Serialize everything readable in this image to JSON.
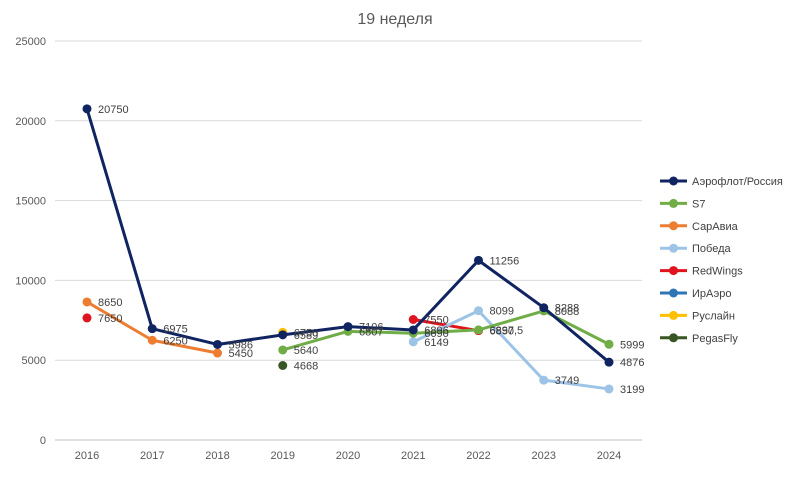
{
  "chart_data": {
    "type": "line",
    "title": "19 неделя",
    "xlabel": "",
    "ylabel": "",
    "x": [
      "2016",
      "2017",
      "2018",
      "2019",
      "2020",
      "2021",
      "2022",
      "2023",
      "2024"
    ],
    "ylim": [
      0,
      25000
    ],
    "yticks": [
      "0",
      "5000",
      "10000",
      "15000",
      "20000",
      "25000"
    ],
    "grid": true,
    "legend_position": "right",
    "series": [
      {
        "name": "Аэрофлот/Россия",
        "color": "#0f2461",
        "values": [
          20750,
          6975,
          5986,
          6589,
          7106,
          6896,
          11256,
          8288,
          4876
        ],
        "labels": [
          "20750",
          "6975",
          "5986",
          "6589",
          "7106",
          "6896",
          "11256",
          "8288",
          "4876"
        ]
      },
      {
        "name": "S7",
        "color": "#70ad47",
        "values": [
          null,
          null,
          null,
          5640,
          6807,
          6690,
          6897.5,
          8088,
          5999
        ],
        "labels": [
          "",
          "",
          "",
          "5640",
          "6807",
          "6690",
          "6897,5",
          "8088",
          "5999"
        ]
      },
      {
        "name": "СарАвиа",
        "color": "#ed7d31",
        "values": [
          8650,
          6250,
          5450,
          null,
          null,
          null,
          null,
          null,
          null
        ],
        "labels": [
          "8650",
          "6250",
          "5450",
          "",
          "",
          "",
          "",
          "",
          ""
        ]
      },
      {
        "name": "Победа",
        "color": "#9dc3e6",
        "values": [
          null,
          null,
          null,
          null,
          null,
          6149,
          8099,
          3749,
          3199
        ],
        "labels": [
          "",
          "",
          "",
          "",
          "",
          "6149",
          "8099",
          "3749",
          "3199"
        ]
      },
      {
        "name": "RedWings",
        "color": "#e0141e",
        "values": [
          7650,
          null,
          null,
          null,
          null,
          7550,
          6850,
          null,
          null
        ],
        "labels": [
          "7650",
          "",
          "",
          "",
          "",
          "7550",
          "6850",
          "",
          ""
        ]
      },
      {
        "name": "ИрАэро",
        "color": "#2e75b6",
        "values": [
          null,
          null,
          null,
          null,
          null,
          null,
          null,
          null,
          null
        ],
        "labels": [
          "",
          "",
          "",
          "",
          "",
          "",
          "",
          "",
          ""
        ]
      },
      {
        "name": "Руслайн",
        "color": "#ffc000",
        "values": [
          null,
          null,
          null,
          6750,
          null,
          null,
          null,
          null,
          null
        ],
        "labels": [
          "",
          "",
          "",
          "6750",
          "",
          "",
          "",
          "",
          ""
        ]
      },
      {
        "name": "PegasFly",
        "color": "#375623",
        "values": [
          null,
          null,
          null,
          4668,
          null,
          null,
          null,
          null,
          null
        ],
        "labels": [
          "",
          "",
          "",
          "4668",
          "",
          "",
          "",
          "",
          ""
        ]
      }
    ]
  }
}
